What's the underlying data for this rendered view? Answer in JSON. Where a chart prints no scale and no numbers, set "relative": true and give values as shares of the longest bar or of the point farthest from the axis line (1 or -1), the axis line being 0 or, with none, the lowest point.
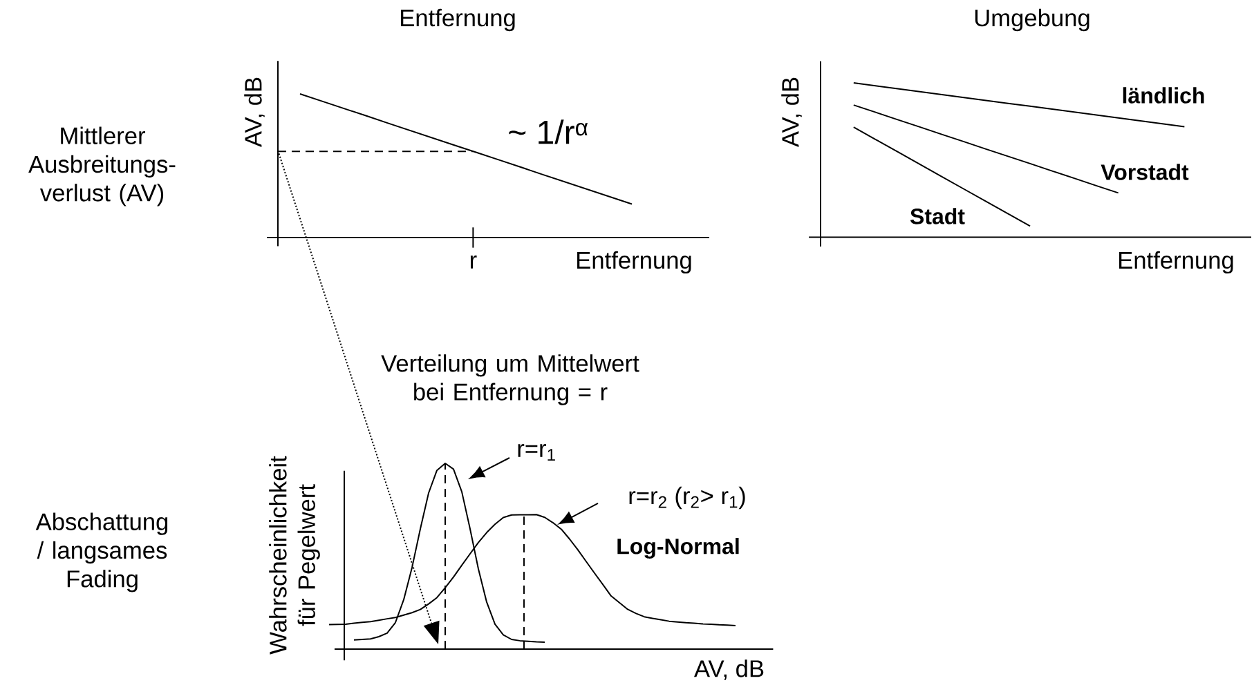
{
  "chart_data": [
    {
      "type": "line",
      "title": "Entfernung",
      "xlabel": "Entfernung",
      "ylabel": "AV, dB",
      "relative": true,
      "categories": [
        null,
        null,
        null,
        null,
        null,
        null,
        null,
        null,
        null,
        null,
        null,
        null,
        null,
        null,
        null,
        null,
        null
      ],
      "annotations": [
        "Mittlerer Ausbreitungs-verlust (AV)",
        "~ 1/r$^{α}$",
        "r"
      ],
      "ref_lines": [
        {
          "axis": "y",
          "value": 0.6,
          "line_style": "dashed"
        }
      ],
      "series": [
        {
          "values": [
            null,
            1,
            0.949,
            0.898,
            0.847,
            0.795,
            0.744,
            0.693,
            0.642,
            0.591,
            0.54,
            0.489,
            0.437,
            0.386,
            0.335,
            0.284,
            0.233
          ],
          "color": "#000000"
        }
      ]
    },
    {
      "type": "line",
      "title": "Umgebung",
      "xlabel": "Entfernung",
      "ylabel": "AV, dB",
      "relative": true,
      "categories": [
        null,
        null,
        null,
        null,
        null,
        null,
        null,
        null,
        null,
        null,
        null,
        null,
        null,
        null,
        null,
        null
      ],
      "series": [
        {
          "name": "ländlich",
          "values": [
            1,
            0.981,
            0.962,
            0.943,
            0.924,
            0.905,
            0.886,
            0.867,
            0.849,
            0.83,
            0.811,
            0.792,
            0.773,
            0.754,
            0.735,
            0.716
          ],
          "color": "#000000"
        },
        {
          "name": "Vorstadt",
          "values": [
            0.856,
            0.809,
            0.761,
            0.714,
            0.666,
            0.619,
            0.571,
            0.524,
            0.477,
            0.429,
            0.382,
            0.334,
            0.287,
            null,
            null,
            null
          ],
          "color": "#000000"
        },
        {
          "name": "Stadt",
          "values": [
            0.713,
            0.633,
            0.553,
            0.473,
            0.392,
            0.312,
            0.232,
            0.152,
            0.072,
            null,
            null,
            null,
            null,
            null,
            null,
            null
          ],
          "color": "#000000"
        }
      ]
    },
    {
      "type": "line",
      "title": "Verteilung um Mittelwert bei Entfernung = r",
      "xlabel": "AV, dB",
      "ylabel": "Wahrscheinlichkeit für Pegelwert",
      "relative": true,
      "legend": "top right",
      "categories": [
        null,
        null,
        null,
        null,
        null,
        null,
        null,
        null,
        null,
        null,
        null,
        null,
        null,
        null,
        null,
        null,
        null,
        null,
        null,
        null,
        null,
        null,
        null,
        null,
        null,
        null,
        null,
        null,
        null,
        null,
        null,
        null,
        null,
        null,
        null,
        null,
        null,
        null,
        null,
        null,
        null,
        null,
        null,
        null,
        null,
        null,
        null,
        null,
        null,
        null
      ],
      "annotations": [
        "Abschattung / langsames Fading",
        "Log-Normal"
      ],
      "series": [
        {
          "name": "r=r$_{1}$",
          "values": [
            null,
            null,
            null,
            0.049,
            0.052,
            0.055,
            0.067,
            0.086,
            0.143,
            0.266,
            0.439,
            0.647,
            0.84,
            0.962,
            1.0,
            0.969,
            0.847,
            0.647,
            0.431,
            0.253,
            0.134,
            0.077,
            0.052,
            0.045,
            0.042,
            0.039,
            0.037,
            null,
            null,
            null,
            null,
            null,
            null,
            null,
            null,
            null,
            null,
            null,
            null,
            null,
            null,
            null,
            null,
            null,
            null,
            null,
            null,
            null,
            null,
            null
          ],
          "color": "#000000"
        },
        {
          "name": "r=r$_{2}$ (r$_{2}$> r$_{1}$)",
          "values": [
            0.132,
            0.133,
            0.134,
            0.139,
            0.144,
            0.148,
            0.155,
            0.163,
            0.17,
            0.183,
            0.196,
            0.213,
            0.243,
            0.277,
            0.33,
            0.388,
            0.451,
            0.513,
            0.574,
            0.627,
            0.672,
            0.708,
            0.722,
            0.723,
            0.723,
            0.724,
            0.709,
            0.68,
            0.645,
            0.592,
            0.534,
            0.471,
            0.409,
            0.348,
            0.286,
            0.25,
            0.214,
            0.192,
            0.174,
            0.165,
            0.158,
            0.15,
            0.146,
            0.142,
            0.139,
            0.136,
            0.134,
            0.131,
            0.129,
            0.126
          ],
          "color": "#000000"
        }
      ]
    }
  ]
}
